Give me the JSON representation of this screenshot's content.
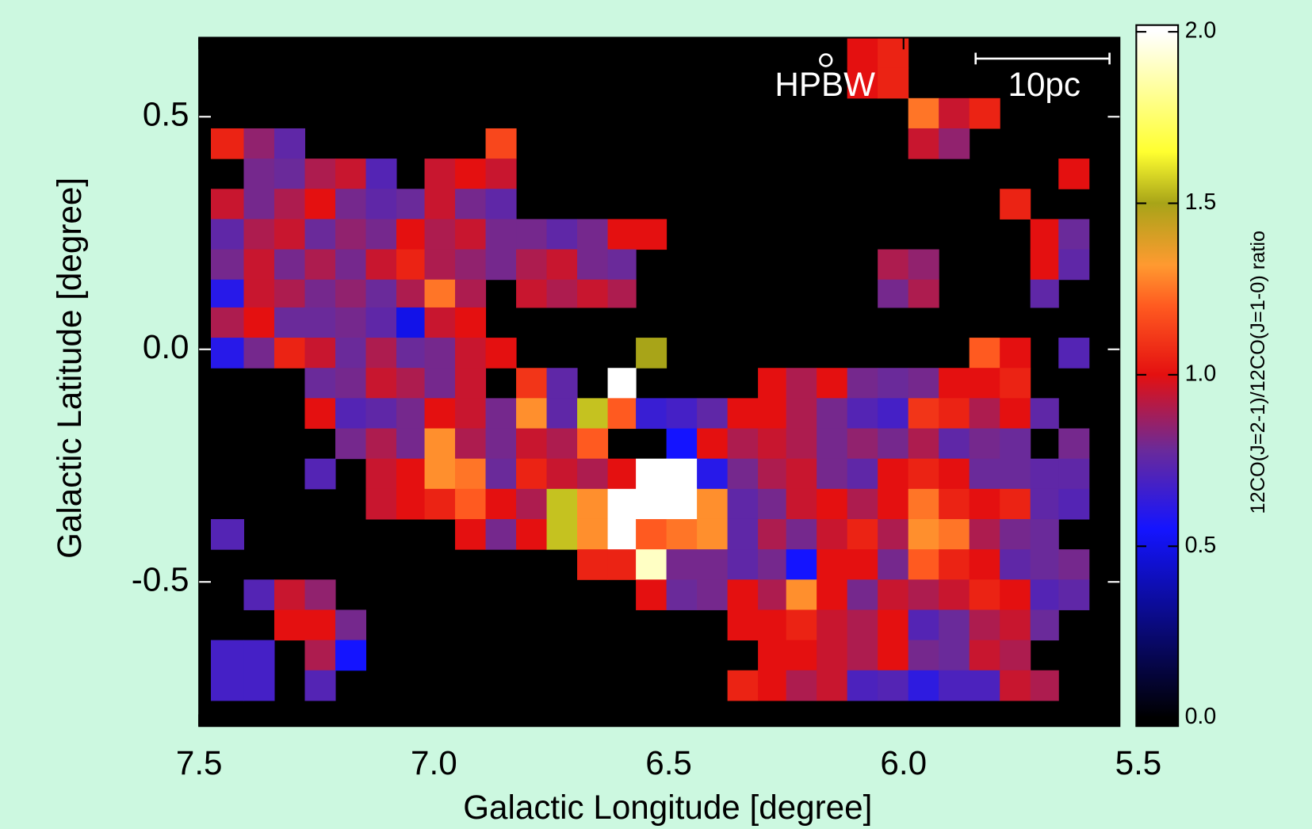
{
  "chart_data": {
    "type": "heatmap",
    "x_label": "Galactic Longitude [degree]",
    "y_label": "Galactic Latitude [degree]",
    "colorbar_label": "12CO(J=2-1)/12CO(J=1-0) ratio",
    "annotations": [
      "HPBW",
      "10pc"
    ],
    "xlim": [
      7.5,
      5.54
    ],
    "ylim": [
      -0.81,
      0.67
    ],
    "xticks": [
      7.5,
      {
        "value": 7,
        "label": "7.0"
      },
      6.5,
      {
        "value": 6,
        "label": "6.0"
      },
      5.5
    ],
    "yticks": [
      0.5,
      {
        "value": 0,
        "label": "0.0"
      },
      -0.5
    ],
    "clim": [
      0,
      2
    ],
    "cticks": [
      {
        "value": 0,
        "label": "0.0"
      },
      0.5,
      {
        "value": 1,
        "label": "1.0"
      },
      1.5,
      {
        "value": 2,
        "label": "2.0"
      }
    ],
    "colorscale": [
      {
        "value": 0,
        "color": "#000000"
      },
      {
        "value": 0.55,
        "color": "#1414ff"
      },
      {
        "value": 0.78,
        "color": "#6a2a9a"
      },
      {
        "value": 1.0,
        "color": "#e41010"
      },
      {
        "value": 1.2,
        "color": "#ff5a20"
      },
      {
        "value": 1.32,
        "color": "#ff9a30"
      },
      {
        "value": 1.5,
        "color": "#a8a418"
      },
      {
        "value": 1.65,
        "color": "#ffff30"
      },
      {
        "value": 2.0,
        "color": "#ffffff"
      }
    ],
    "background": "#000000",
    "x": [
      7.44,
      7.37,
      7.31,
      7.24,
      7.18,
      7.11,
      7.05,
      6.99,
      6.92,
      6.86,
      6.79,
      6.73,
      6.66,
      6.6,
      6.54,
      6.47,
      6.41,
      6.34,
      6.28,
      6.22,
      6.15,
      6.09,
      6.02,
      5.96,
      5.89,
      5.83,
      5.76,
      5.7,
      5.64,
      5.57
    ],
    "y": [
      0.64,
      0.57,
      0.51,
      0.44,
      0.38,
      0.31,
      0.25,
      0.18,
      0.12,
      0.06,
      -0.01,
      -0.07,
      -0.14,
      -0.2,
      -0.27,
      -0.33,
      -0.4,
      -0.46,
      -0.53,
      -0.59,
      -0.66,
      -0.72,
      -0.79
    ],
    "values": [
      [
        null,
        null,
        null,
        null,
        null,
        null,
        null,
        null,
        null,
        null,
        null,
        null,
        null,
        null,
        null,
        null,
        null,
        null,
        null,
        null,
        null,
        1.0,
        1.05,
        null,
        null,
        null,
        null,
        null,
        null,
        null
      ],
      [
        null,
        null,
        null,
        null,
        null,
        null,
        null,
        null,
        null,
        null,
        null,
        null,
        null,
        null,
        null,
        null,
        null,
        null,
        null,
        null,
        null,
        1.0,
        1.05,
        null,
        null,
        null,
        null,
        null,
        null,
        null
      ],
      [
        null,
        null,
        null,
        null,
        null,
        null,
        null,
        null,
        null,
        null,
        null,
        null,
        null,
        null,
        null,
        null,
        null,
        null,
        null,
        null,
        null,
        null,
        null,
        1.25,
        0.95,
        1.05,
        null,
        null,
        null,
        null
      ],
      [
        1.05,
        0.85,
        0.75,
        null,
        null,
        null,
        null,
        null,
        null,
        1.15,
        null,
        null,
        null,
        null,
        null,
        null,
        null,
        null,
        null,
        null,
        null,
        null,
        null,
        0.95,
        0.85,
        null,
        null,
        null,
        null,
        null
      ],
      [
        null,
        0.8,
        0.78,
        0.9,
        0.95,
        0.72,
        null,
        0.95,
        1.0,
        0.95,
        null,
        null,
        null,
        null,
        null,
        null,
        null,
        null,
        null,
        null,
        null,
        null,
        null,
        null,
        null,
        null,
        null,
        null,
        1.0,
        null
      ],
      [
        0.95,
        0.8,
        0.9,
        1.0,
        0.8,
        0.75,
        0.78,
        0.95,
        0.8,
        0.75,
        null,
        null,
        null,
        null,
        null,
        null,
        null,
        null,
        null,
        null,
        null,
        null,
        null,
        null,
        null,
        null,
        1.05,
        null,
        null,
        null
      ],
      [
        0.75,
        0.9,
        0.95,
        0.78,
        0.85,
        0.8,
        1.0,
        0.9,
        0.95,
        0.8,
        0.8,
        0.75,
        0.8,
        1.0,
        1.0,
        null,
        null,
        null,
        null,
        null,
        null,
        null,
        null,
        null,
        null,
        null,
        null,
        1.0,
        0.78,
        null
      ],
      [
        0.8,
        0.95,
        0.8,
        0.9,
        0.8,
        0.95,
        1.05,
        0.9,
        0.85,
        0.8,
        0.9,
        0.95,
        0.8,
        0.78,
        null,
        null,
        null,
        null,
        null,
        null,
        null,
        null,
        0.9,
        0.85,
        null,
        null,
        null,
        1.0,
        0.75,
        null
      ],
      [
        0.6,
        0.95,
        0.9,
        0.8,
        0.85,
        0.78,
        0.9,
        1.25,
        0.9,
        null,
        0.95,
        0.9,
        0.95,
        0.9,
        null,
        null,
        null,
        null,
        null,
        null,
        null,
        null,
        0.8,
        0.9,
        null,
        null,
        null,
        0.75,
        null,
        null
      ],
      [
        0.9,
        1.0,
        0.78,
        0.78,
        0.8,
        0.75,
        0.5,
        0.95,
        1.0,
        null,
        null,
        null,
        null,
        null,
        null,
        null,
        null,
        null,
        null,
        null,
        null,
        null,
        null,
        null,
        null,
        null,
        null,
        null,
        null,
        null
      ],
      [
        0.6,
        0.8,
        1.05,
        0.95,
        0.78,
        0.9,
        0.78,
        0.8,
        0.95,
        1.0,
        null,
        null,
        null,
        null,
        1.5,
        null,
        null,
        null,
        null,
        null,
        null,
        null,
        null,
        null,
        null,
        1.2,
        1.0,
        null,
        0.72,
        null
      ],
      [
        null,
        null,
        null,
        0.78,
        0.8,
        0.95,
        0.9,
        0.8,
        0.95,
        null,
        1.1,
        0.75,
        null,
        2.0,
        null,
        null,
        null,
        null,
        1.0,
        0.9,
        1.0,
        0.8,
        0.78,
        0.8,
        1.0,
        1.0,
        1.05,
        null,
        null,
        null
      ],
      [
        null,
        null,
        null,
        1.0,
        0.72,
        0.75,
        0.8,
        1.0,
        0.95,
        0.8,
        1.3,
        0.75,
        1.55,
        1.2,
        0.65,
        0.68,
        0.75,
        1.0,
        1.0,
        0.9,
        0.8,
        0.72,
        0.68,
        1.1,
        1.05,
        0.9,
        1.0,
        0.75,
        null,
        null
      ],
      [
        null,
        null,
        null,
        null,
        0.8,
        0.9,
        0.8,
        1.3,
        0.9,
        0.8,
        0.95,
        0.9,
        1.2,
        null,
        null,
        0.55,
        1.0,
        0.9,
        0.95,
        0.9,
        0.8,
        0.85,
        0.8,
        0.9,
        0.75,
        0.8,
        0.78,
        null,
        0.8,
        null
      ],
      [
        null,
        null,
        null,
        0.72,
        null,
        0.95,
        1.0,
        1.3,
        1.25,
        0.78,
        1.05,
        0.95,
        0.9,
        1.0,
        2.0,
        2.0,
        0.6,
        0.8,
        0.9,
        0.95,
        0.8,
        0.75,
        1.0,
        1.05,
        1.0,
        0.78,
        0.78,
        0.75,
        0.75,
        null
      ],
      [
        null,
        null,
        null,
        null,
        null,
        0.95,
        1.0,
        1.05,
        1.2,
        1.0,
        0.9,
        1.55,
        1.3,
        2.0,
        2.0,
        2.0,
        1.3,
        0.75,
        0.8,
        0.95,
        1.0,
        0.9,
        1.0,
        1.25,
        1.05,
        1.0,
        1.05,
        0.75,
        0.72,
        null
      ],
      [
        0.72,
        null,
        null,
        null,
        null,
        null,
        null,
        null,
        1.0,
        0.8,
        1.0,
        1.55,
        1.3,
        2.0,
        1.2,
        1.25,
        1.3,
        0.75,
        0.9,
        0.8,
        0.95,
        1.05,
        0.9,
        1.3,
        1.25,
        0.9,
        0.8,
        0.78,
        null,
        null
      ],
      [
        null,
        null,
        null,
        null,
        null,
        null,
        null,
        null,
        null,
        null,
        null,
        null,
        1.05,
        1.05,
        1.9,
        0.8,
        0.8,
        0.75,
        0.8,
        0.55,
        1.0,
        1.0,
        0.8,
        1.2,
        1.05,
        1.0,
        0.75,
        0.78,
        0.8,
        null
      ],
      [
        null,
        0.72,
        0.95,
        0.85,
        null,
        null,
        null,
        null,
        null,
        null,
        null,
        null,
        null,
        null,
        1.0,
        0.78,
        0.8,
        1.0,
        0.9,
        1.3,
        1.0,
        0.8,
        0.95,
        0.9,
        0.95,
        1.05,
        1.0,
        0.72,
        0.75,
        null
      ],
      [
        null,
        null,
        1.0,
        1.0,
        0.8,
        null,
        null,
        null,
        null,
        null,
        null,
        null,
        null,
        null,
        null,
        null,
        null,
        1.0,
        1.0,
        1.05,
        0.95,
        0.9,
        1.0,
        0.72,
        0.78,
        0.9,
        0.95,
        0.78,
        null,
        null
      ],
      [
        0.68,
        0.68,
        null,
        0.9,
        0.55,
        null,
        null,
        null,
        null,
        null,
        null,
        null,
        null,
        null,
        null,
        null,
        null,
        null,
        1.0,
        1.0,
        0.95,
        0.9,
        1.0,
        0.8,
        0.78,
        0.95,
        0.9,
        null,
        null,
        null
      ],
      [
        0.68,
        0.68,
        null,
        0.72,
        null,
        null,
        null,
        null,
        null,
        null,
        null,
        null,
        null,
        null,
        null,
        null,
        null,
        1.05,
        1.0,
        0.9,
        0.95,
        0.7,
        0.72,
        0.62,
        0.7,
        0.7,
        0.95,
        0.9,
        null,
        null
      ],
      [
        null,
        null,
        null,
        null,
        null,
        null,
        null,
        null,
        null,
        null,
        null,
        null,
        null,
        null,
        null,
        null,
        null,
        null,
        null,
        null,
        null,
        null,
        null,
        null,
        null,
        null,
        null,
        null,
        null,
        null
      ]
    ]
  }
}
